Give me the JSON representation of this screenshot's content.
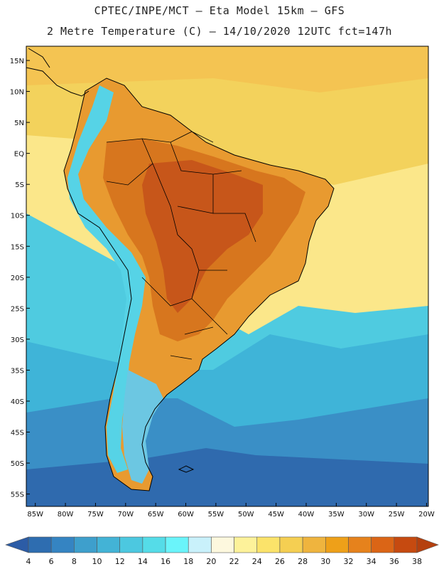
{
  "title_line1": "CPTEC/INPE/MCT –  Eta Model 15km – GFS",
  "title_line2": "2 Metre Temperature (C) – 14/10/2020 12UTC fct=147h",
  "lat_labels": [
    "15N",
    "10N",
    "5N",
    "EQ",
    "5S",
    "10S",
    "15S",
    "20S",
    "25S",
    "30S",
    "35S",
    "40S",
    "45S",
    "50S",
    "55S"
  ],
  "lat_values": [
    15,
    10,
    5,
    0,
    -5,
    -10,
    -15,
    -20,
    -25,
    -30,
    -35,
    -40,
    -45,
    -50,
    -55
  ],
  "lon_labels": [
    "85W",
    "80W",
    "75W",
    "70W",
    "65W",
    "60W",
    "55W",
    "50W",
    "45W",
    "40W",
    "35W",
    "30W",
    "25W",
    "20W"
  ],
  "lon_values": [
    -85,
    -80,
    -75,
    -70,
    -65,
    -60,
    -55,
    -50,
    -45,
    -40,
    -35,
    -30,
    -25,
    -20
  ],
  "colorbar": {
    "labels": [
      "4",
      "6",
      "8",
      "10",
      "12",
      "14",
      "16",
      "18",
      "20",
      "22",
      "24",
      "26",
      "28",
      "30",
      "32",
      "34",
      "36",
      "38"
    ],
    "colors": [
      "#2e6db0",
      "#3584c2",
      "#3e9fcc",
      "#43b3d6",
      "#4cc8e0",
      "#55dce8",
      "#6af4fa",
      "#c9f1fb",
      "#fdf8de",
      "#fdf29a",
      "#fbe36a",
      "#f5cf52",
      "#efb43e",
      "#eea019",
      "#e6821c",
      "#db6516",
      "#c64a10"
    ],
    "left_cap_color": "#2c5ca6",
    "right_cap_color": "#b5400e"
  },
  "map_colors": {
    "deep_ocean": "#2f6aae",
    "cold_ocean": "#3a8fc6",
    "cool_ocean": "#3fb4d8",
    "mild_ocean": "#4fcbe0",
    "subtrop_ocean": "#fbe78a",
    "warm_ocean": "#f3d25c",
    "tropical_ocean": "#f4c452",
    "land_hot": "#d7761e",
    "land_warm": "#e89a30",
    "land_very_hot": "#c7561a",
    "andes_cold": "#56d3e6",
    "patagonia": "#6cc7e2",
    "coast_line": "#000000"
  }
}
